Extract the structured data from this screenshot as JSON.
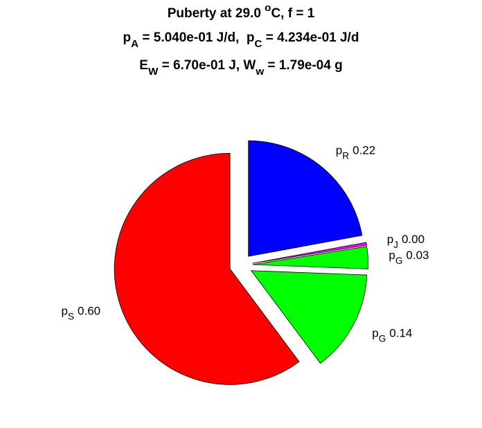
{
  "chart_data": {
    "type": "pie",
    "title": [
      [
        {
          "t": "Puberty at 29.0 "
        },
        {
          "t": "o",
          "shift": "super"
        },
        {
          "t": "C, f = 1"
        }
      ],
      [
        {
          "t": "p"
        },
        {
          "t": "A",
          "shift": "sub"
        },
        {
          "t": " = 5.040e-01 J/d,  p"
        },
        {
          "t": "C",
          "shift": "sub"
        },
        {
          "t": " = 4.234e-01 J/d"
        }
      ],
      [
        {
          "t": "E"
        },
        {
          "t": "W",
          "shift": "sub"
        },
        {
          "t": " = 6.70e-01 J, W"
        },
        {
          "t": "w",
          "shift": "sub"
        },
        {
          "t": " = 1.79e-04 g"
        }
      ]
    ],
    "categories": [
      {
        "text": "p",
        "sub": "R"
      },
      {
        "text": "p",
        "sub": "J"
      },
      {
        "text": "p",
        "sub": "G"
      },
      {
        "text": "p",
        "sub": "G"
      },
      {
        "text": "p",
        "sub": "S"
      }
    ],
    "values": [
      0.221,
      0.004,
      0.031,
      0.142,
      0.602
    ],
    "value_labels": [
      "0.22",
      "0.00",
      "0.03",
      "0.14",
      "0.60"
    ],
    "colors": [
      "#0000ff",
      "#ff00ff",
      "#00ff00",
      "#00ff00",
      "#ff0000"
    ],
    "explode": true
  }
}
